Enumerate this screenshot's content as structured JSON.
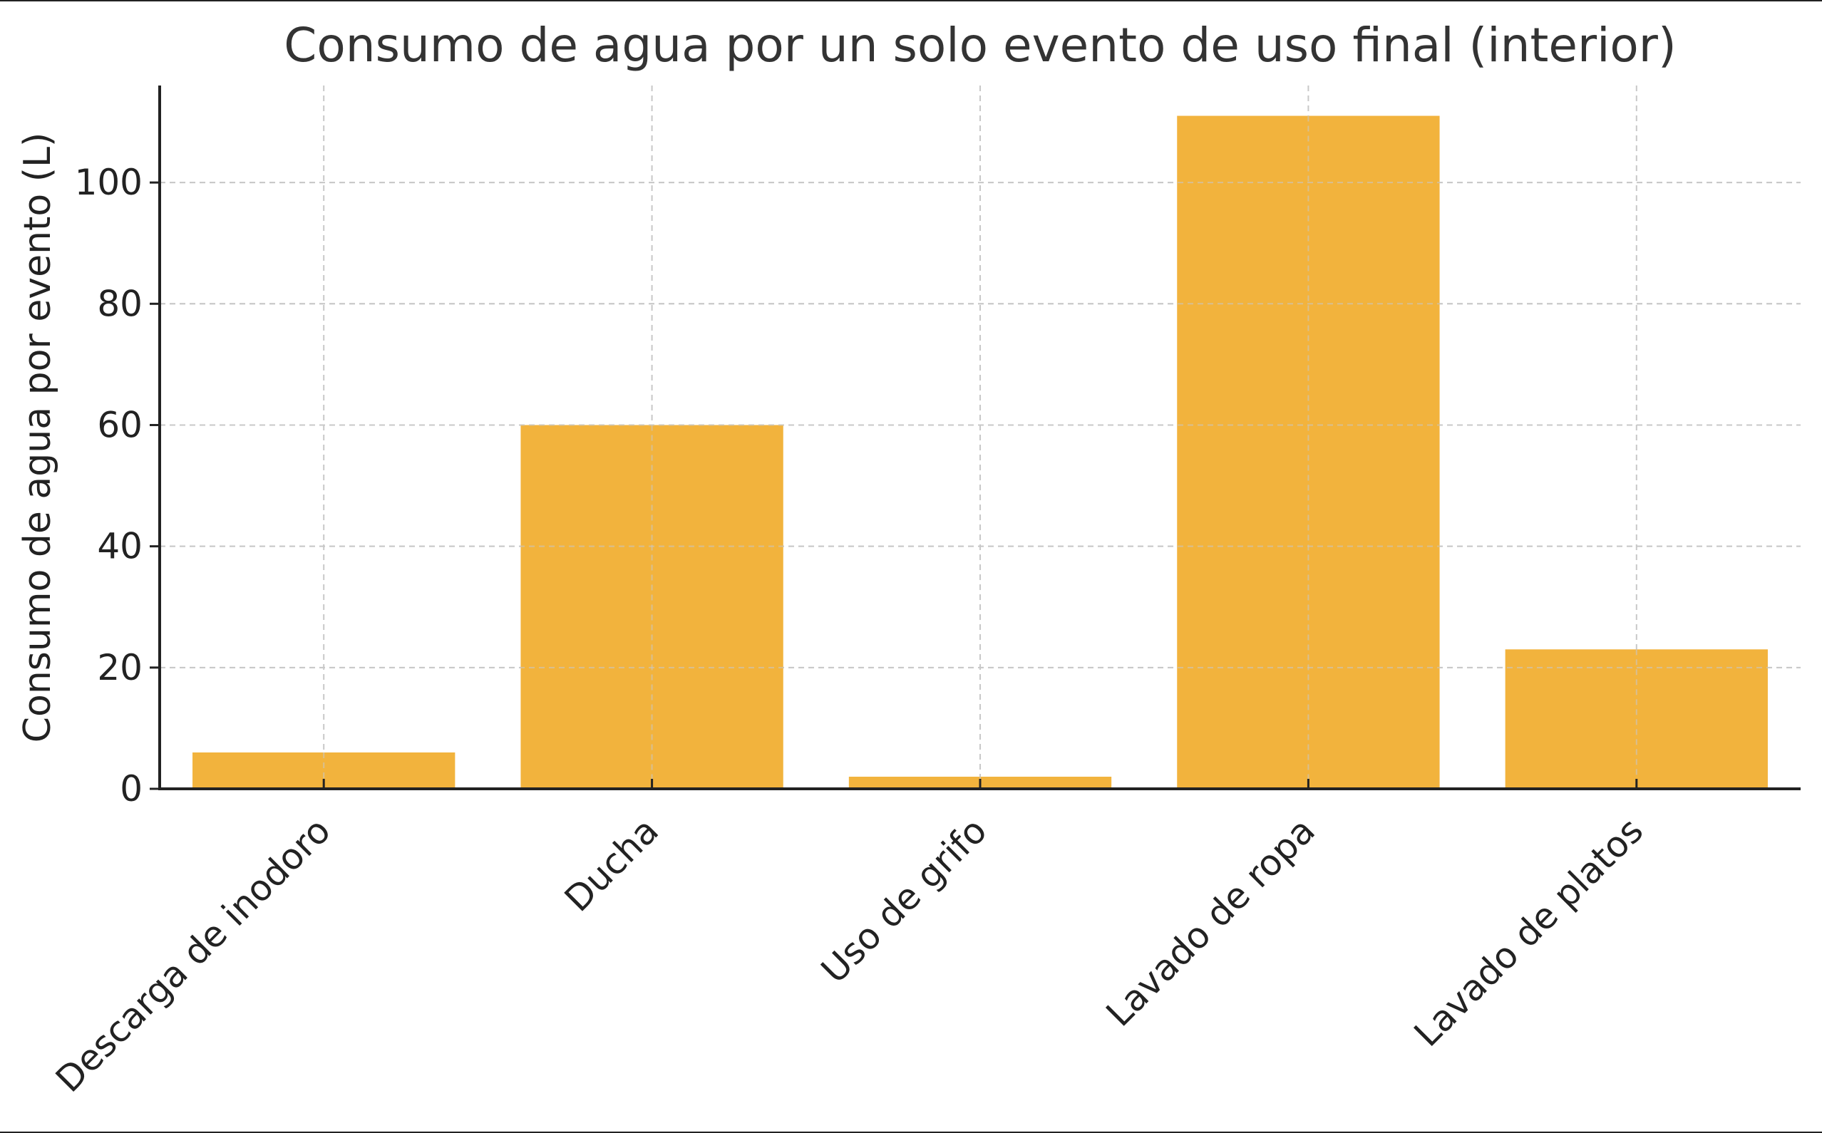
{
  "chart_data": {
    "type": "bar",
    "title": "Consumo de agua por un solo evento de uso final (interior)",
    "xlabel": "",
    "ylabel": "Consumo de agua por evento (L)",
    "categories": [
      "Descarga de inodoro",
      "Ducha",
      "Uso de grifo",
      "Lavado de ropa",
      "Lavado de platos"
    ],
    "values": [
      6,
      60,
      2,
      111,
      23
    ],
    "ylim": [
      0,
      116
    ],
    "yticks": [
      0,
      20,
      40,
      60,
      80,
      100
    ],
    "grid": true,
    "bar_color": "#F2B33D"
  }
}
